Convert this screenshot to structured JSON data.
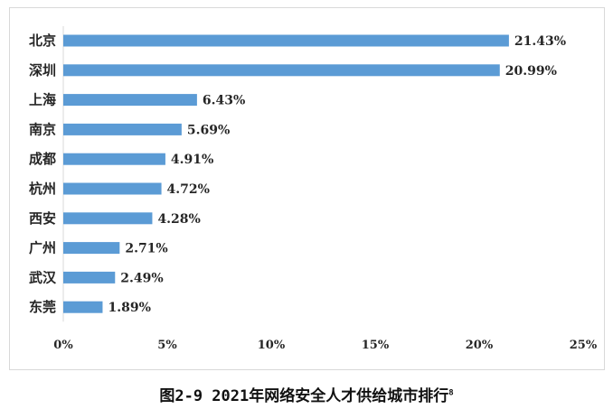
{
  "chart_data": {
    "type": "bar",
    "orientation": "horizontal",
    "categories": [
      "北京",
      "深圳",
      "上海",
      "南京",
      "成都",
      "杭州",
      "西安",
      "广州",
      "武汉",
      "东莞"
    ],
    "values": [
      21.43,
      20.99,
      6.43,
      5.69,
      4.91,
      4.72,
      4.28,
      2.71,
      2.49,
      1.89
    ],
    "value_labels": [
      "21.43%",
      "20.99%",
      "6.43%",
      "5.69%",
      "4.91%",
      "4.72%",
      "4.28%",
      "2.71%",
      "2.49%",
      "1.89%"
    ],
    "x_ticks": [
      "0%",
      "5%",
      "10%",
      "15%",
      "20%",
      "25%"
    ],
    "xlim": [
      0,
      25
    ],
    "grid": false,
    "bar_color": "#5b9bd5",
    "title": "",
    "xlabel": "",
    "ylabel": ""
  },
  "caption": {
    "text": "图2-9 2021年网络安全人才供给城市排行",
    "superscript": "8"
  }
}
